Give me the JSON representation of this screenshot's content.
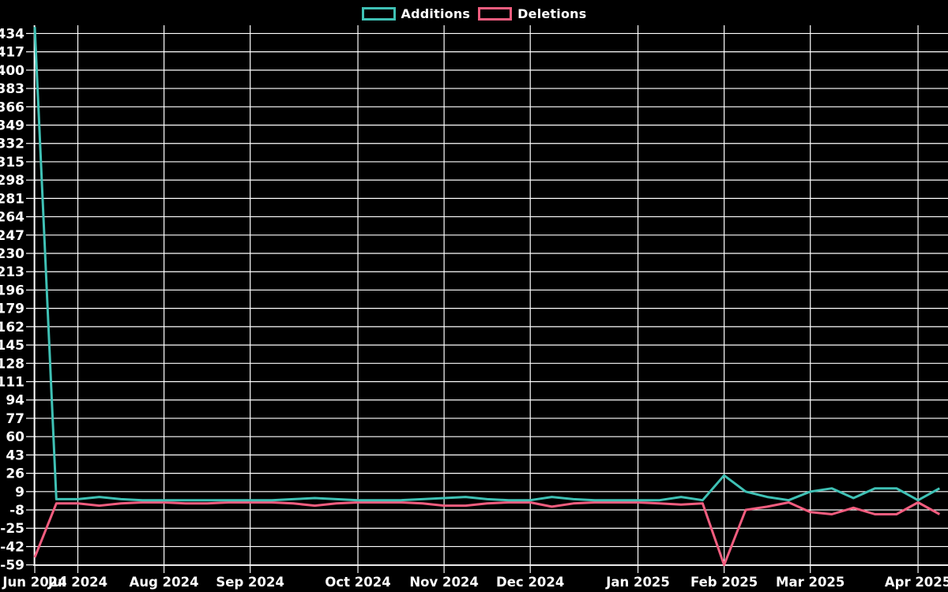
{
  "chart_data": {
    "type": "line",
    "title": "",
    "background_color": "#000000",
    "grid": true,
    "grid_color": "#ffffff",
    "text_color": "#ffffff",
    "legend_position": "top-center",
    "x_axis": {
      "unit": "week",
      "tick_labels": [
        "Jun 2024",
        "Jul 2024",
        "Aug 2024",
        "Sep 2024",
        "Oct 2024",
        "Nov 2024",
        "Dec 2024",
        "Jan 2025",
        "Feb 2025",
        "Mar 2025",
        "Apr 2025"
      ],
      "tick_week_indices": [
        0,
        2,
        6,
        10,
        15,
        19,
        23,
        28,
        32,
        36,
        41
      ]
    },
    "y_axis": {
      "tick_values": [
        434,
        417,
        400,
        383,
        366,
        349,
        332,
        315,
        298,
        281,
        264,
        247,
        230,
        213,
        196,
        179,
        162,
        145,
        128,
        111,
        94,
        77,
        60,
        43,
        26,
        9,
        -8,
        -25,
        -42,
        -59
      ],
      "tick_min": -59,
      "tick_max": 434,
      "tick_step": 17,
      "value_range": [
        -59,
        440
      ]
    },
    "series": [
      {
        "name": "Additions",
        "color": "#3fc1b5",
        "values": [
          440,
          2,
          2,
          4,
          2,
          1,
          1,
          1,
          1,
          1,
          1,
          1,
          2,
          3,
          2,
          1,
          1,
          1,
          2,
          3,
          4,
          2,
          1,
          1,
          4,
          2,
          1,
          1,
          1,
          1,
          4,
          1,
          24,
          9,
          4,
          1,
          9,
          12,
          3,
          12,
          12,
          1,
          12
        ]
      },
      {
        "name": "Deletions",
        "color": "#f25d7f",
        "values": [
          -52,
          -2,
          -2,
          -4,
          -2,
          -1,
          -1,
          -2,
          -2,
          -1,
          -1,
          -1,
          -2,
          -4,
          -2,
          -1,
          -1,
          -1,
          -2,
          -4,
          -4,
          -2,
          -1,
          -1,
          -5,
          -2,
          -1,
          -1,
          -1,
          -2,
          -3,
          -2,
          -59,
          -8,
          -5,
          -1,
          -10,
          -12,
          -6,
          -12,
          -12,
          -1,
          -12
        ]
      }
    ]
  }
}
